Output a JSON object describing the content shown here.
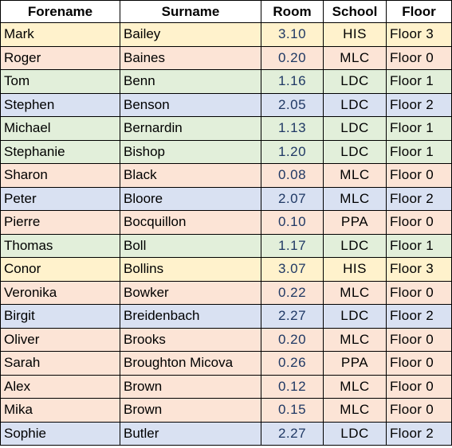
{
  "table": {
    "headers": [
      "Forename",
      "Surname",
      "Room",
      "School",
      "Floor"
    ],
    "rows": [
      {
        "forename": "Mark",
        "surname": "Bailey",
        "room": "3.10",
        "school": "HIS",
        "floor": "Floor 3",
        "group": "his"
      },
      {
        "forename": "Roger",
        "surname": "Baines",
        "room": "0.20",
        "school": "MLC",
        "floor": "Floor 0",
        "group": "mlc"
      },
      {
        "forename": "Tom",
        "surname": "Benn",
        "room": "1.16",
        "school": "LDC",
        "floor": "Floor 1",
        "group": "ldc1"
      },
      {
        "forename": "Stephen",
        "surname": "Benson",
        "room": "2.05",
        "school": "LDC",
        "floor": "Floor 2",
        "group": "ldc2"
      },
      {
        "forename": "Michael",
        "surname": "Bernardin",
        "room": "1.13",
        "school": "LDC",
        "floor": "Floor 1",
        "group": "ldc1"
      },
      {
        "forename": "Stephanie",
        "surname": "Bishop",
        "room": "1.20",
        "school": "LDC",
        "floor": "Floor 1",
        "group": "ldc1"
      },
      {
        "forename": "Sharon",
        "surname": "Black",
        "room": "0.08",
        "school": "MLC",
        "floor": "Floor 0",
        "group": "mlc"
      },
      {
        "forename": "Peter",
        "surname": "Bloore",
        "room": "2.07",
        "school": "MLC",
        "floor": "Floor 2",
        "group": "ldc2"
      },
      {
        "forename": "Pierre",
        "surname": "Bocquillon",
        "room": "0.10",
        "school": "PPA",
        "floor": "Floor 0",
        "group": "ppa"
      },
      {
        "forename": "Thomas",
        "surname": "Boll",
        "room": "1.17",
        "school": "LDC",
        "floor": "Floor 1",
        "group": "ldc1"
      },
      {
        "forename": "Conor",
        "surname": "Bollins",
        "room": "3.07",
        "school": "HIS",
        "floor": "Floor 3",
        "group": "his"
      },
      {
        "forename": "Veronika",
        "surname": "Bowker",
        "room": "0.22",
        "school": "MLC",
        "floor": "Floor 0",
        "group": "mlc"
      },
      {
        "forename": "Birgit",
        "surname": "Breidenbach",
        "room": "2.27",
        "school": "LDC",
        "floor": "Floor 2",
        "group": "ldc2"
      },
      {
        "forename": "Oliver",
        "surname": "Brooks",
        "room": "0.20",
        "school": "MLC",
        "floor": "Floor 0",
        "group": "mlc"
      },
      {
        "forename": "Sarah",
        "surname": "Broughton Micova",
        "room": "0.26",
        "school": "PPA",
        "floor": "Floor 0",
        "group": "ppa"
      },
      {
        "forename": "Alex",
        "surname": "Brown",
        "room": "0.12",
        "school": "MLC",
        "floor": "Floor 0",
        "group": "mlc"
      },
      {
        "forename": "Mika",
        "surname": "Brown",
        "room": "0.15",
        "school": "MLC",
        "floor": "Floor 0",
        "group": "mlc"
      },
      {
        "forename": "Sophie",
        "surname": "Butler",
        "room": "2.27",
        "school": "LDC",
        "floor": "Floor 2",
        "group": "ldc2"
      }
    ]
  },
  "colors": {
    "his": "#fff2cc",
    "mlc": "#fce4d6",
    "ppa": "#fce4d6",
    "ldc1": "#e2efda",
    "ldc2": "#d9e1f2",
    "room_text": "#1f3864"
  }
}
